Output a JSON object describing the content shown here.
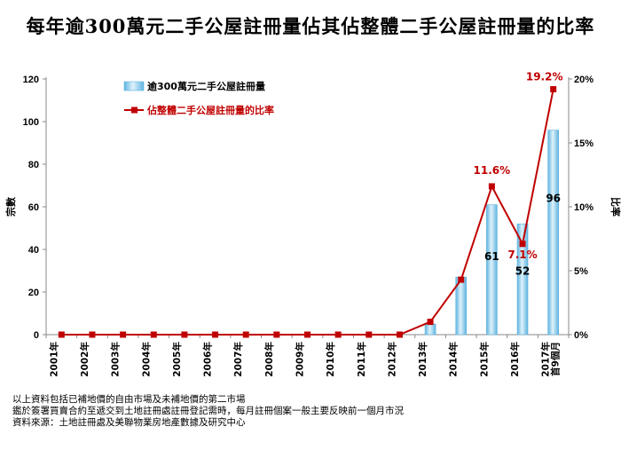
{
  "title": "每年逾300萬元二手公屋註冊量佔其佔整體二手公屋註冊量的比率",
  "chart_data": {
    "type": "bar+line",
    "categories": [
      "2001年",
      "2002年",
      "2003年",
      "2004年",
      "2005年",
      "2006年",
      "2007年",
      "2008年",
      "2009年",
      "2010年",
      "2011年",
      "2012年",
      "2013年",
      "2014年",
      "2015年",
      "2016年",
      "2017年\n首9個月"
    ],
    "series": [
      {
        "name": "逾300萬元二手公屋註冊量",
        "type": "bar",
        "axis": "left",
        "values": [
          0,
          0,
          0,
          0,
          0,
          0,
          0,
          0,
          0,
          0,
          0,
          0,
          5,
          27,
          61,
          52,
          96
        ],
        "data_labels": {
          "14": "61",
          "15": "52",
          "16": "96"
        }
      },
      {
        "name": "佔整體二手公屋註冊量的比率",
        "type": "line",
        "axis": "right",
        "values": [
          0,
          0,
          0,
          0,
          0,
          0,
          0,
          0,
          0,
          0,
          0,
          0,
          1.0,
          4.3,
          11.6,
          7.1,
          19.2
        ],
        "data_labels": {
          "14": "11.6%",
          "15": "7.1%",
          "16": "19.2%"
        }
      }
    ],
    "ylabel_left": "宗數",
    "ylabel_right": "比率",
    "ylim_left": [
      0,
      120
    ],
    "yticks_left": [
      "0",
      "20",
      "40",
      "60",
      "80",
      "100",
      "120"
    ],
    "ylim_right": [
      0,
      20
    ],
    "yticks_right": [
      "0%",
      "5%",
      "10%",
      "15%",
      "20%"
    ],
    "legend_position": "top-left",
    "colors": {
      "bar": "#a8d8f0",
      "bar_edge": "#5fb4e0",
      "line": "#c00000",
      "label_red": "#c00000"
    }
  },
  "notes": [
    "以上資料包括已補地價的自由市場及未補地價的第二市場",
    "鑑於簽署買賣合約至遞交到土地註冊處註冊登記需時，每月註冊個案一般主要反映前一個月市況",
    "資料來源：土地註冊處及美聯物業房地產數據及研究中心"
  ]
}
